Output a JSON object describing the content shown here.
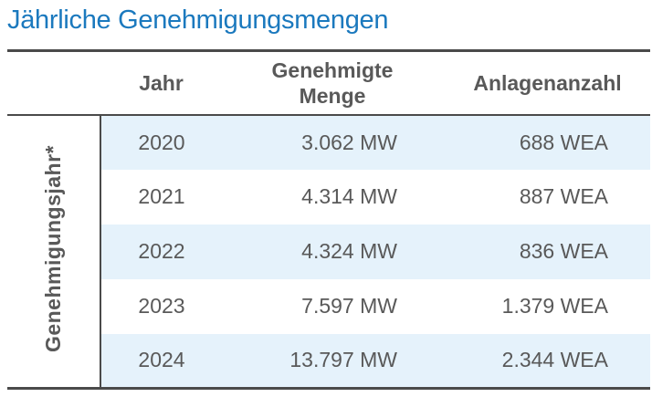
{
  "title": "Jährliche Genehmigungsmengen",
  "colors": {
    "title_blue": "#1B79BE",
    "text_gray": "#595959",
    "row_alt_blue": "#E5F2FB",
    "border_dark": "#4A4A4A"
  },
  "chart_data": {
    "type": "table",
    "title": "Jährliche Genehmigungsmengen",
    "row_group_label": "Genehmigungsjahr*",
    "columns": [
      "Jahr",
      "Genehmigte Menge",
      "Anlagenanzahl"
    ],
    "rows": [
      [
        "2020",
        "3.062 MW",
        "688 WEA"
      ],
      [
        "2021",
        "4.314 MW",
        "887 WEA"
      ],
      [
        "2022",
        "4.324 MW",
        "836 WEA"
      ],
      [
        "2023",
        "7.597 MW",
        "1.379 WEA"
      ],
      [
        "2024",
        "13.797 MW",
        "2.344 WEA"
      ]
    ],
    "categories": [
      2020,
      2021,
      2022,
      2023,
      2024
    ],
    "series": [
      {
        "name": "Genehmigte Menge (MW)",
        "values": [
          3062,
          4314,
          4324,
          7597,
          13797
        ]
      },
      {
        "name": "Anlagenanzahl (WEA)",
        "values": [
          688,
          887,
          836,
          1379,
          2344
        ]
      }
    ],
    "layout": {
      "row_striping": "odd-rows-light-blue",
      "units": {
        "menge": "MW",
        "anzahl": "WEA"
      }
    }
  }
}
